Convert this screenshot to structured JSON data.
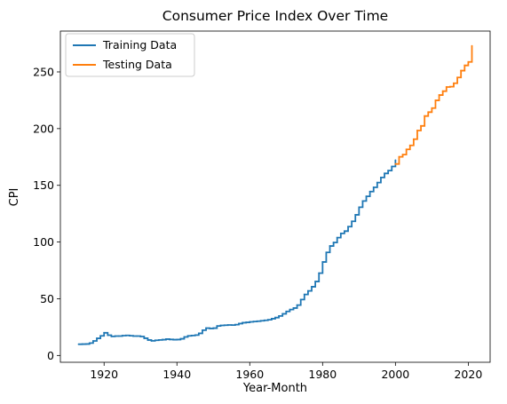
{
  "chart_data": {
    "type": "line",
    "title": "Consumer Price Index Over Time",
    "xlabel": "Year-Month",
    "ylabel": "CPI",
    "xlim": [
      1908,
      2026
    ],
    "ylim": [
      -6,
      286
    ],
    "xticks": [
      {
        "value": 1920,
        "label": "1920"
      },
      {
        "value": 1940,
        "label": "1940"
      },
      {
        "value": 1960,
        "label": "1960"
      },
      {
        "value": 1980,
        "label": "1980"
      },
      {
        "value": 2000,
        "label": "2000"
      },
      {
        "value": 2020,
        "label": "2020"
      }
    ],
    "yticks": [
      {
        "value": 0,
        "label": "0"
      },
      {
        "value": 50,
        "label": "50"
      },
      {
        "value": 100,
        "label": "100"
      },
      {
        "value": 150,
        "label": "150"
      },
      {
        "value": 200,
        "label": "200"
      },
      {
        "value": 250,
        "label": "250"
      }
    ],
    "grid": false,
    "legend": {
      "position": "top-left"
    },
    "series": [
      {
        "name": "Training Data",
        "color": "#1f77b4",
        "x": [
          1913,
          1914,
          1915,
          1916,
          1917,
          1918,
          1919,
          1920,
          1921,
          1922,
          1923,
          1924,
          1925,
          1926,
          1927,
          1928,
          1929,
          1930,
          1931,
          1932,
          1933,
          1934,
          1935,
          1936,
          1937,
          1938,
          1939,
          1940,
          1941,
          1942,
          1943,
          1944,
          1945,
          1946,
          1947,
          1948,
          1949,
          1950,
          1951,
          1952,
          1953,
          1954,
          1955,
          1956,
          1957,
          1958,
          1959,
          1960,
          1961,
          1962,
          1963,
          1964,
          1965,
          1966,
          1967,
          1968,
          1969,
          1970,
          1971,
          1972,
          1973,
          1974,
          1975,
          1976,
          1977,
          1978,
          1979,
          1980,
          1981,
          1982,
          1983,
          1984,
          1985,
          1986,
          1987,
          1988,
          1989,
          1990,
          1991,
          1992,
          1993,
          1994,
          1995,
          1996,
          1997,
          1998,
          1999,
          2000
        ],
        "y": [
          9.9,
          10.0,
          10.1,
          10.9,
          12.8,
          15.1,
          17.3,
          20.0,
          17.9,
          16.8,
          17.1,
          17.1,
          17.5,
          17.7,
          17.4,
          17.1,
          17.1,
          16.7,
          15.2,
          13.6,
          12.9,
          13.4,
          13.7,
          13.9,
          14.4,
          14.1,
          13.9,
          14.0,
          14.7,
          16.3,
          17.3,
          17.6,
          18.0,
          19.5,
          22.3,
          24.1,
          23.8,
          24.1,
          26.0,
          26.5,
          26.7,
          26.9,
          26.8,
          27.2,
          28.1,
          28.9,
          29.2,
          29.6,
          29.9,
          30.2,
          30.6,
          31.0,
          31.5,
          32.4,
          33.4,
          34.8,
          36.7,
          38.8,
          40.5,
          41.8,
          44.4,
          49.3,
          53.8,
          56.9,
          60.6,
          65.2,
          72.6,
          82.4,
          90.9,
          96.5,
          99.6,
          103.9,
          107.6,
          109.6,
          113.6,
          118.3,
          124.0,
          130.7,
          136.2,
          140.3,
          144.5,
          148.2,
          152.4,
          156.9,
          160.5,
          163.0,
          166.6,
          172.2
        ]
      },
      {
        "name": "Testing Data",
        "color": "#ff7f0e",
        "x": [
          2000,
          2001,
          2002,
          2003,
          2004,
          2005,
          2006,
          2007,
          2008,
          2009,
          2010,
          2011,
          2012,
          2013,
          2014,
          2015,
          2016,
          2017,
          2018,
          2019,
          2020,
          2021
        ],
        "y": [
          168.8,
          175.1,
          177.1,
          181.7,
          185.2,
          190.7,
          198.3,
          202.4,
          211.1,
          214.5,
          218.1,
          224.9,
          229.6,
          233.0,
          236.7,
          237.0,
          240.0,
          245.1,
          251.1,
          255.7,
          258.8,
          273.0
        ]
      }
    ]
  }
}
